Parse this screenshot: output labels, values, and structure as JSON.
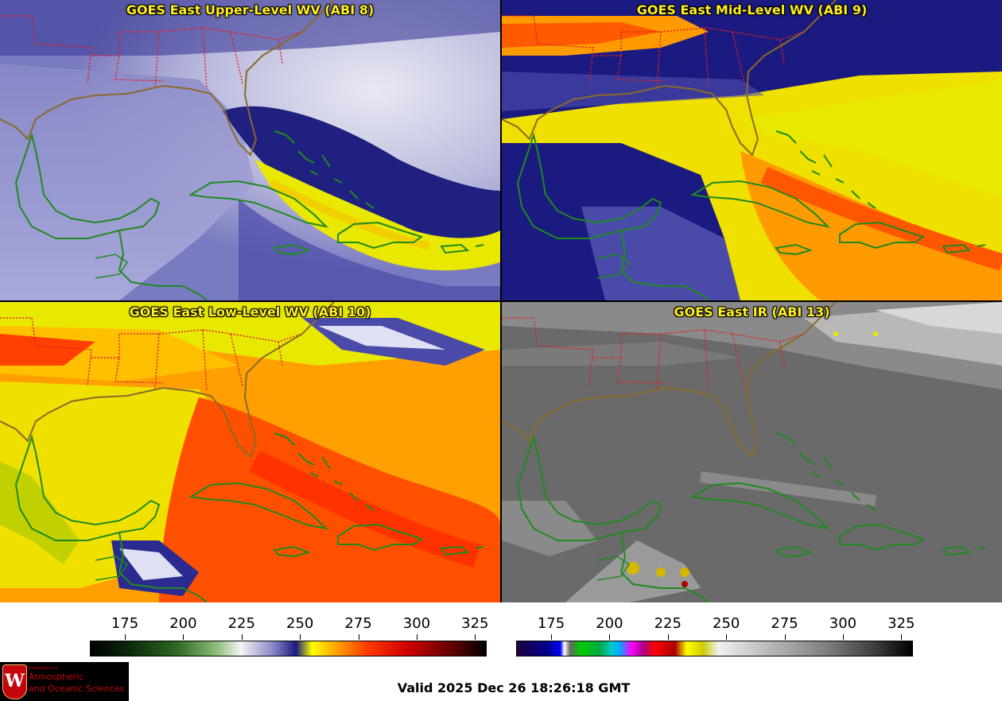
{
  "panels": [
    {
      "id": "p1",
      "title": "GOES East Upper-Level WV (ABI 8)",
      "palette": "wv"
    },
    {
      "id": "p2",
      "title": "GOES East Mid-Level WV (ABI 9)",
      "palette": "wv"
    },
    {
      "id": "p3",
      "title": "GOES East Low-Level WV (ABI 10)",
      "palette": "wv"
    },
    {
      "id": "p4",
      "title": "GOES East IR (ABI 13)",
      "palette": "ir"
    }
  ],
  "colorbars": {
    "left": {
      "ticks": [
        "175",
        "200",
        "225",
        "250",
        "275",
        "300",
        "325"
      ],
      "min": 160,
      "max": 330
    },
    "right": {
      "ticks": [
        "175",
        "200",
        "225",
        "250",
        "275",
        "300",
        "325"
      ],
      "min": 160,
      "max": 330
    }
  },
  "logo": {
    "crest": "W",
    "small": "Department of",
    "line1": "Atmospheric",
    "line2": "and Oceanic Sciences"
  },
  "valid_time": "Valid 2025 Dec 26 18:26:18 GMT",
  "colors": {
    "coastline": "#1f8a1f",
    "state_borders": "#dd2222",
    "title_text": "#ffee22"
  }
}
